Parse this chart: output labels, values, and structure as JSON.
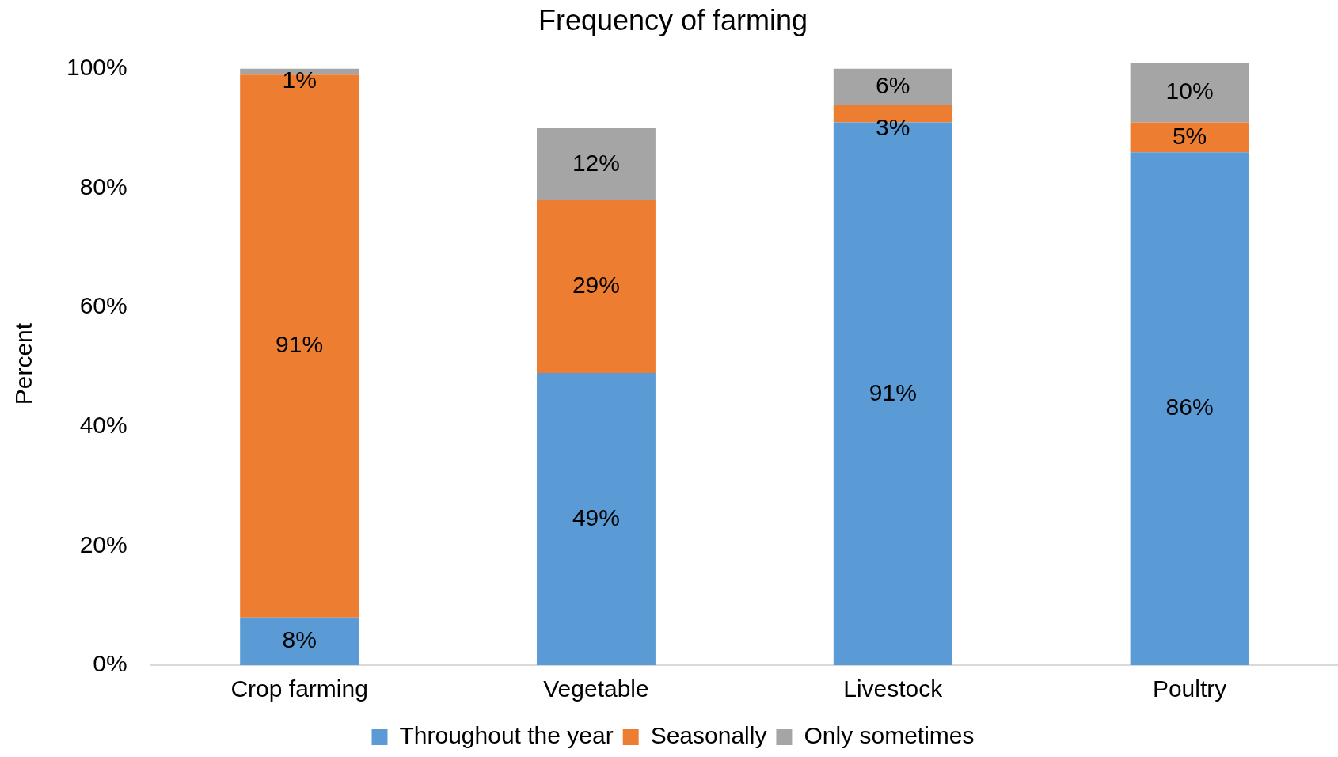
{
  "chart_data": {
    "type": "bar",
    "title": "Frequency of farming",
    "ylabel": "Percent",
    "categories": [
      "Crop farming",
      "Vegetable",
      "Livestock",
      "Poultry"
    ],
    "stacked": true,
    "ylim": [
      0,
      101
    ],
    "yticks": [
      {
        "value": 0,
        "label": "0%"
      },
      {
        "value": 20,
        "label": "20%"
      },
      {
        "value": 40,
        "label": "40%"
      },
      {
        "value": 60,
        "label": "60%"
      },
      {
        "value": 80,
        "label": "80%"
      },
      {
        "value": 100,
        "label": "100%"
      }
    ],
    "grid": false,
    "legend": "bottom",
    "series": [
      {
        "name": "Throughout the year",
        "color": "#5b9bd5",
        "values": [
          8,
          49,
          91,
          86
        ],
        "value_labels": [
          "8%",
          "49%",
          "91%",
          "86%"
        ]
      },
      {
        "name": "Seasonally",
        "color": "#ed7d31",
        "values": [
          91,
          29,
          3,
          5
        ],
        "value_labels": [
          "91%",
          "29%",
          "3%",
          "5%"
        ]
      },
      {
        "name": "Only sometimes",
        "color": "#a5a5a5",
        "values": [
          1,
          12,
          6,
          10
        ],
        "value_labels": [
          "1%",
          "12%",
          "6%",
          "10%"
        ]
      }
    ]
  }
}
